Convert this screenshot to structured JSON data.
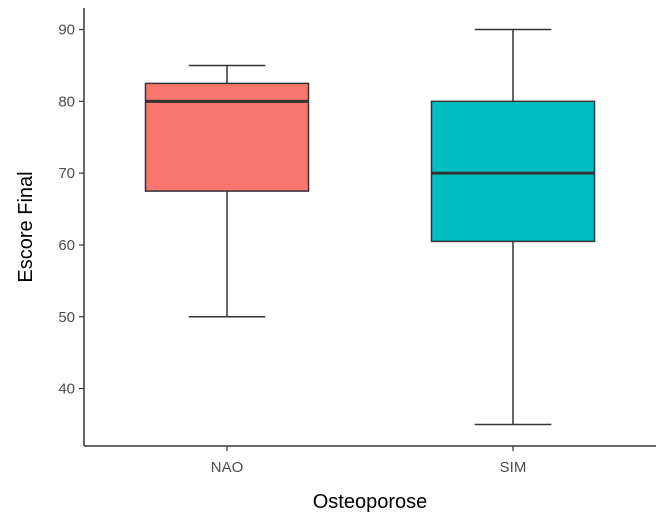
{
  "chart_data": {
    "type": "boxplot",
    "xlabel": "Osteoporose",
    "ylabel": "Escore Final",
    "ylim": [
      32,
      93
    ],
    "yticks": [
      40,
      50,
      60,
      70,
      80,
      90
    ],
    "ytick_labels": [
      "40",
      "50",
      "60",
      "70",
      "80",
      "90"
    ],
    "grid": false,
    "legend": "none",
    "groups": [
      {
        "category": "NAO",
        "whisker_low": 50,
        "q1": 67.5,
        "median": 80,
        "q3": 82.5,
        "whisker_high": 85,
        "color": "#F8766D"
      },
      {
        "category": "SIM",
        "whisker_low": 35,
        "q1": 60.5,
        "median": 70,
        "q3": 80,
        "whisker_high": 90,
        "color": "#00BFC4"
      }
    ]
  }
}
